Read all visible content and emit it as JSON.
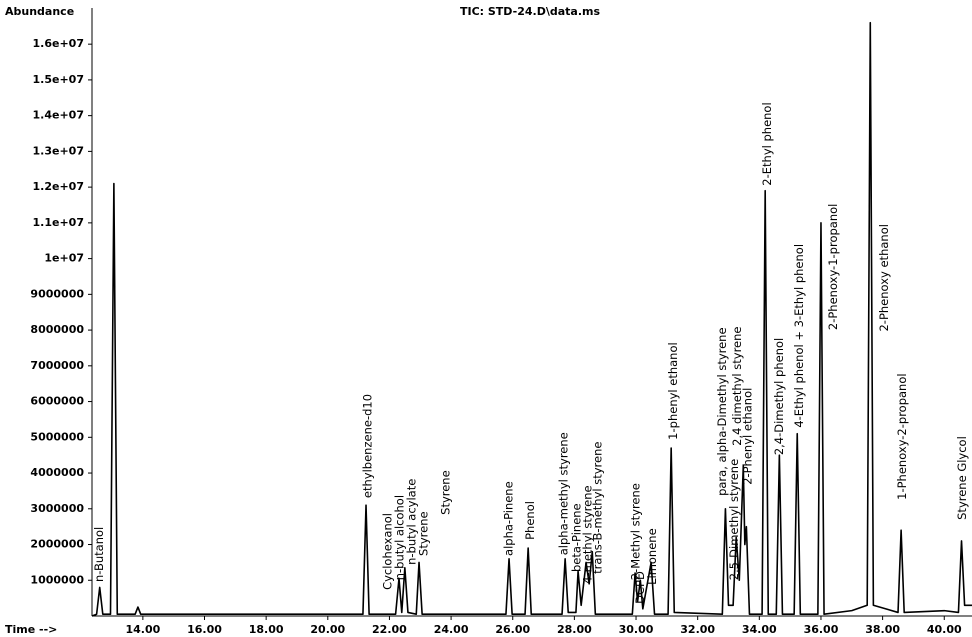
{
  "chart_data": {
    "type": "line",
    "title": "TIC: STD-24.D\\data.ms",
    "ylabel": "Abundance",
    "xlabel": "Time -->",
    "color": "#000000",
    "xlim": [
      12.35,
      40.9
    ],
    "ylim": [
      0,
      16900000
    ],
    "xticks": [
      {
        "value": 14,
        "label": "14.00"
      },
      {
        "value": 16,
        "label": "16.00"
      },
      {
        "value": 18,
        "label": "18.00"
      },
      {
        "value": 20,
        "label": "20.00"
      },
      {
        "value": 22,
        "label": "22.00"
      },
      {
        "value": 24,
        "label": "24.00"
      },
      {
        "value": 26,
        "label": "26.00"
      },
      {
        "value": 28,
        "label": "28.00"
      },
      {
        "value": 30,
        "label": "30.00"
      },
      {
        "value": 32,
        "label": "32.00"
      },
      {
        "value": 34,
        "label": "34.00"
      },
      {
        "value": 36,
        "label": "36.00"
      },
      {
        "value": 38,
        "label": "38.00"
      },
      {
        "value": 40,
        "label": "40.00"
      }
    ],
    "yticks": [
      1000000,
      2000000,
      3000000,
      4000000,
      5000000,
      6000000,
      7000000,
      8000000,
      9000000,
      {
        "value": 10000000,
        "label": "1e+07"
      },
      {
        "value": 11000000,
        "label": "1.1e+07"
      },
      {
        "value": 12000000,
        "label": "1.2e+07"
      },
      {
        "value": 13000000,
        "label": "1.3e+07"
      },
      {
        "value": 14000000,
        "label": "1.4e+07"
      },
      {
        "value": 15000000,
        "label": "1.5e+07"
      },
      {
        "value": 16000000,
        "label": "1.6e+07"
      }
    ],
    "x": [
      12.35,
      12.5,
      12.6,
      12.7,
      12.95,
      13.06,
      13.17,
      13.75,
      13.84,
      13.93,
      21.14,
      21.24,
      21.34,
      22.2,
      22.31,
      22.4,
      22.5,
      22.6,
      22.87,
      22.96,
      23.06,
      25.78,
      25.88,
      25.98,
      26.4,
      26.5,
      26.6,
      27.6,
      27.7,
      27.8,
      28.05,
      28.12,
      28.22,
      28.38,
      28.48,
      28.58,
      28.68,
      29.88,
      29.97,
      30.05,
      30.14,
      30.22,
      30.49,
      30.6,
      31.04,
      31.14,
      31.24,
      32.8,
      32.9,
      33.0,
      33.15,
      33.25,
      33.35,
      33.48,
      33.53,
      33.58,
      33.68,
      34.09,
      34.19,
      34.29,
      34.55,
      34.65,
      34.75,
      35.13,
      35.23,
      35.33,
      35.9,
      36.0,
      36.1,
      37.0,
      37.5,
      37.6,
      37.7,
      38.5,
      38.6,
      38.7,
      40.0,
      40.46,
      40.56,
      40.66,
      40.9
    ],
    "values": [
      0,
      50000,
      800000,
      50000,
      50000,
      12100000,
      50000,
      50000,
      250000,
      50000,
      50000,
      3100000,
      50000,
      50000,
      1050000,
      100000,
      1350000,
      100000,
      50000,
      1500000,
      50000,
      50000,
      1600000,
      50000,
      50000,
      1900000,
      50000,
      50000,
      1600000,
      100000,
      100000,
      1250000,
      300000,
      1500000,
      900000,
      1800000,
      50000,
      50000,
      1200000,
      400000,
      1000000,
      200000,
      1500000,
      50000,
      50000,
      4700000,
      100000,
      50000,
      3000000,
      300000,
      300000,
      2200000,
      1000000,
      4200000,
      2000000,
      2500000,
      50000,
      50000,
      11900000,
      50000,
      50000,
      4500000,
      50000,
      50000,
      5100000,
      50000,
      50000,
      11000000,
      50000,
      150000,
      300000,
      16600000,
      300000,
      100000,
      2400000,
      100000,
      150000,
      100000,
      2100000,
      300000,
      300000
    ],
    "annotations": [
      {
        "text": "n-Butanol",
        "x": 12.6,
        "y": 950000
      },
      {
        "text": "ethylbenzene-d10",
        "x": 21.3,
        "y": 3300000
      },
      {
        "text": "Cyclohexanol",
        "x": 21.95,
        "y": 730000
      },
      {
        "text": "n-butyl alcohol",
        "x": 22.35,
        "y": 1000000
      },
      {
        "text": "n-butyl acylate",
        "x": 22.73,
        "y": 1430000
      },
      {
        "text": "Styrene",
        "x": 23.12,
        "y": 1680000
      },
      {
        "text": "Styrene",
        "x": 23.84,
        "y": 2830000
      },
      {
        "text": "alpha-Pinene",
        "x": 25.88,
        "y": 1680000
      },
      {
        "text": "Phenol",
        "x": 26.57,
        "y": 2130000
      },
      {
        "text": "alpha-methyl styrene",
        "x": 27.67,
        "y": 1700000
      },
      {
        "text": "beta-Pinene",
        "x": 28.09,
        "y": 1230000
      },
      {
        "text": "4-methyl styrene",
        "x": 28.45,
        "y": 900000
      },
      {
        "text": "trans-B-methyl styrene",
        "x": 28.77,
        "y": 1180000
      },
      {
        "text": "2-Methyl styrene",
        "x": 30.0,
        "y": 1000000
      },
      {
        "text": "DCPD",
        "x": 30.14,
        "y": 340000
      },
      {
        "text": "Limonene",
        "x": 30.53,
        "y": 870000
      },
      {
        "text": "1-phenyl ethanol",
        "x": 31.21,
        "y": 4930000
      },
      {
        "text": "para, alpha-Dimethyl styrene",
        "x": 32.8,
        "y": 3360000
      },
      {
        "text": "2,5-Dimethyl styrene",
        "x": 33.19,
        "y": 1000000
      },
      {
        "text": "2,4 dimethyl styrene",
        "x": 33.29,
        "y": 4760000
      },
      {
        "text": "2-Phenyl ethanol",
        "x": 33.64,
        "y": 3670000
      },
      {
        "text": "2-Ethyl phenol",
        "x": 34.26,
        "y": 12040000
      },
      {
        "text": "2,4-Dimethyl phenol",
        "x": 34.65,
        "y": 4500000
      },
      {
        "text": "4-Ethyl phenol + 3-Ethyl phenol",
        "x": 35.3,
        "y": 5270000
      },
      {
        "text": "2-Phenoxy-1-propanol",
        "x": 36.4,
        "y": 8000000
      },
      {
        "text": "2-Phenoxy ethanol",
        "x": 38.06,
        "y": 7960000
      },
      {
        "text": "1-Phenoxy-2-propanol",
        "x": 38.64,
        "y": 3250000
      },
      {
        "text": "Styrene Glycol",
        "x": 40.59,
        "y": 2690000
      }
    ]
  }
}
